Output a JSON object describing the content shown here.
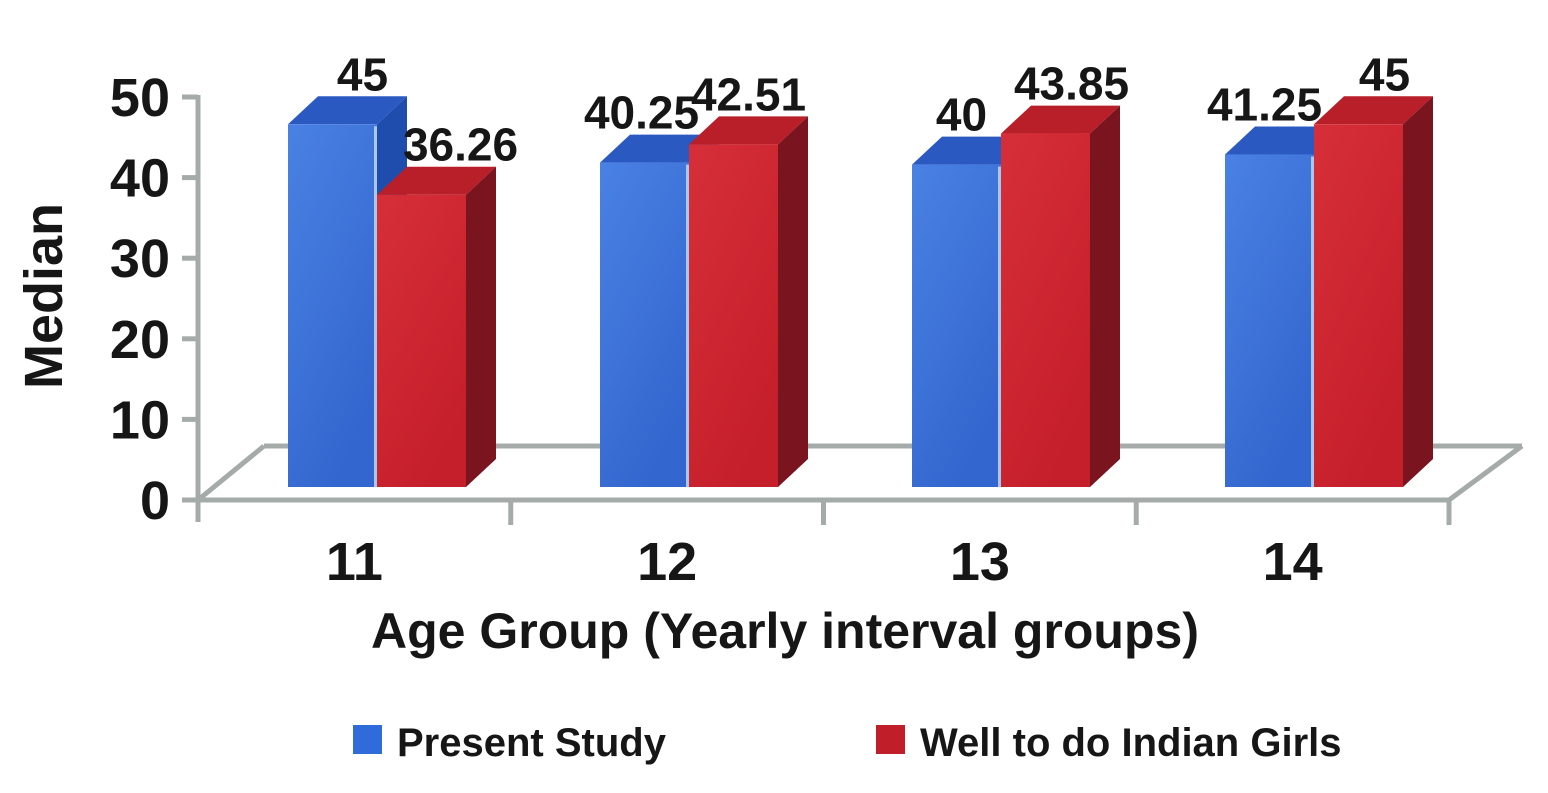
{
  "chart_data": {
    "type": "bar",
    "projection": "3d-column",
    "title": "",
    "categories": [
      "11",
      "12",
      "13",
      "14"
    ],
    "series": [
      {
        "name": "Present Study",
        "values": [
          45,
          40.25,
          40,
          41.25
        ],
        "data_labels": [
          "45",
          "40.25",
          "40",
          "41.25"
        ],
        "swatch": "#2F6BD9",
        "colors": {
          "front_light": "#4A81E4",
          "front_dark": "#3366CE",
          "top": "#2A59C2",
          "side": "#1F4DAE",
          "edge_highlight": "#A9C8F0"
        }
      },
      {
        "name": "Well to do Indian Girls",
        "values": [
          36.26,
          42.51,
          43.85,
          45
        ],
        "data_labels": [
          "36.26",
          "42.51",
          "43.85",
          "45"
        ],
        "swatch": "#C01F29",
        "colors": {
          "front_light": "#D62F39",
          "front_dark": "#C51F2B",
          "top": "#B81F29",
          "side": "#7A141F",
          "edge_highlight": "#D98A92"
        }
      }
    ],
    "xlabel": "Age Group (Yearly interval groups)",
    "ylabel": "Median",
    "ylim": [
      0,
      50
    ],
    "yticks": [
      0,
      10,
      20,
      30,
      40,
      50
    ],
    "y_tick_labels": [
      "0",
      "10",
      "20",
      "30",
      "40",
      "50"
    ],
    "grid": false,
    "data_labels_shown": true,
    "legend_position": "bottom",
    "style": {
      "axis_color": "#A5ABA8",
      "text_color": "#161616",
      "background": "#FFFFFF"
    }
  }
}
